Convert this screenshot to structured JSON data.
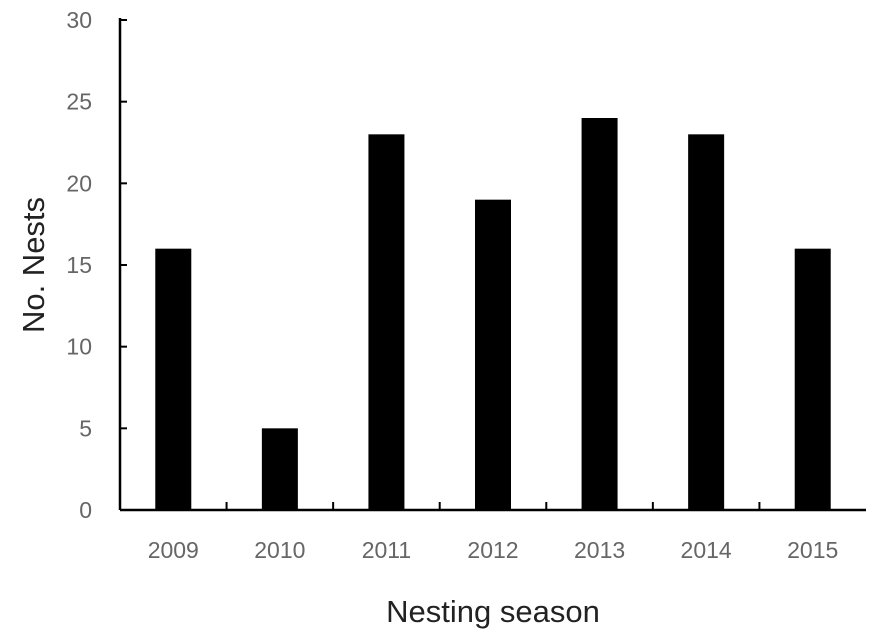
{
  "chart_data": {
    "type": "bar",
    "title": "",
    "xlabel": "Nesting season",
    "ylabel": "No. Nests",
    "categories": [
      "2009",
      "2010",
      "2011",
      "2012",
      "2013",
      "2014",
      "2015"
    ],
    "values": [
      16,
      5,
      23,
      19,
      24,
      23,
      16
    ],
    "ylim": [
      0,
      30
    ],
    "yticks": [
      "0",
      "5",
      "10",
      "15",
      "20",
      "25",
      "30"
    ],
    "grid": false,
    "legend": "none",
    "bar_color": "#000000",
    "tick_label_color": "#666666",
    "axis_title_color": "#222222"
  }
}
